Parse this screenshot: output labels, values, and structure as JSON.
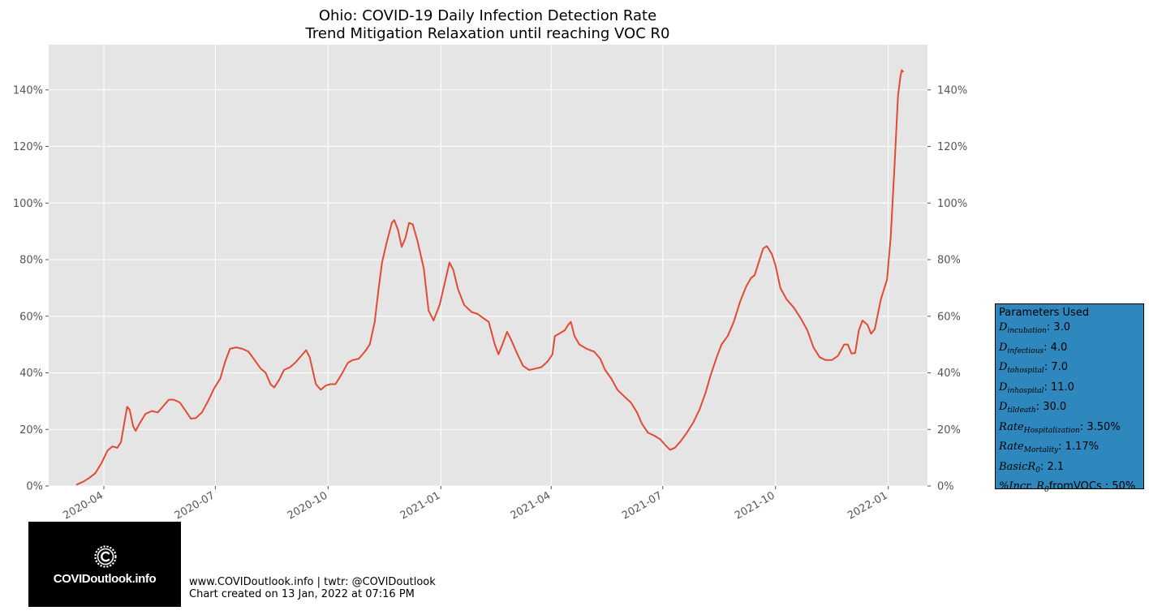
{
  "chart_data": {
    "type": "line",
    "title": [
      "Ohio: COVID-19 Daily Infection Detection Rate",
      "Trend Mitigation Relaxation until reaching VOC R0"
    ],
    "xlabel": "",
    "ylabel": "",
    "xlim": [
      "2020-02-16",
      "2022-02-02"
    ],
    "ylim": [
      0,
      1.56
    ],
    "x_ticks": [
      "2020-04",
      "2020-07",
      "2020-10",
      "2021-01",
      "2021-04",
      "2021-07",
      "2021-10",
      "2022-01"
    ],
    "y_ticks": [
      "0%",
      "20%",
      "40%",
      "60%",
      "80%",
      "100%",
      "120%",
      "140%"
    ],
    "y_tick_values": [
      0,
      0.2,
      0.4,
      0.6,
      0.8,
      1.0,
      1.2,
      1.4
    ],
    "secondary_y_axis": true,
    "grid": true,
    "series": [
      {
        "color": "#e24a33",
        "points": [
          [
            "2020-03-10",
            0.005
          ],
          [
            "2020-03-15",
            0.015
          ],
          [
            "2020-03-20",
            0.028
          ],
          [
            "2020-03-25",
            0.045
          ],
          [
            "2020-03-30",
            0.08
          ],
          [
            "2020-04-04",
            0.125
          ],
          [
            "2020-04-08",
            0.14
          ],
          [
            "2020-04-12",
            0.135
          ],
          [
            "2020-04-15",
            0.155
          ],
          [
            "2020-04-18",
            0.23
          ],
          [
            "2020-04-20",
            0.28
          ],
          [
            "2020-04-22",
            0.27
          ],
          [
            "2020-04-25",
            0.21
          ],
          [
            "2020-04-27",
            0.195
          ],
          [
            "2020-04-30",
            0.22
          ],
          [
            "2020-05-05",
            0.255
          ],
          [
            "2020-05-10",
            0.265
          ],
          [
            "2020-05-15",
            0.26
          ],
          [
            "2020-05-20",
            0.285
          ],
          [
            "2020-05-24",
            0.305
          ],
          [
            "2020-05-28",
            0.305
          ],
          [
            "2020-06-02",
            0.295
          ],
          [
            "2020-06-06",
            0.27
          ],
          [
            "2020-06-11",
            0.238
          ],
          [
            "2020-06-15",
            0.24
          ],
          [
            "2020-06-20",
            0.26
          ],
          [
            "2020-06-25",
            0.3
          ],
          [
            "2020-06-30",
            0.345
          ],
          [
            "2020-07-05",
            0.38
          ],
          [
            "2020-07-09",
            0.44
          ],
          [
            "2020-07-13",
            0.485
          ],
          [
            "2020-07-18",
            0.49
          ],
          [
            "2020-07-23",
            0.485
          ],
          [
            "2020-07-28",
            0.475
          ],
          [
            "2020-08-02",
            0.445
          ],
          [
            "2020-08-07",
            0.415
          ],
          [
            "2020-08-11",
            0.4
          ],
          [
            "2020-08-15",
            0.36
          ],
          [
            "2020-08-18",
            0.348
          ],
          [
            "2020-08-22",
            0.375
          ],
          [
            "2020-08-26",
            0.41
          ],
          [
            "2020-08-31",
            0.42
          ],
          [
            "2020-09-04",
            0.435
          ],
          [
            "2020-09-09",
            0.46
          ],
          [
            "2020-09-13",
            0.48
          ],
          [
            "2020-09-16",
            0.455
          ],
          [
            "2020-09-21",
            0.36
          ],
          [
            "2020-09-25",
            0.34
          ],
          [
            "2020-09-29",
            0.355
          ],
          [
            "2020-10-03",
            0.36
          ],
          [
            "2020-10-07",
            0.36
          ],
          [
            "2020-10-12",
            0.395
          ],
          [
            "2020-10-17",
            0.435
          ],
          [
            "2020-10-21",
            0.445
          ],
          [
            "2020-10-26",
            0.45
          ],
          [
            "2020-10-31",
            0.475
          ],
          [
            "2020-11-04",
            0.5
          ],
          [
            "2020-11-08",
            0.58
          ],
          [
            "2020-11-11",
            0.69
          ],
          [
            "2020-11-14",
            0.79
          ],
          [
            "2020-11-18",
            0.865
          ],
          [
            "2020-11-22",
            0.93
          ],
          [
            "2020-11-24",
            0.94
          ],
          [
            "2020-11-27",
            0.905
          ],
          [
            "2020-11-30",
            0.845
          ],
          [
            "2020-12-03",
            0.875
          ],
          [
            "2020-12-06",
            0.93
          ],
          [
            "2020-12-09",
            0.925
          ],
          [
            "2020-12-13",
            0.865
          ],
          [
            "2020-12-18",
            0.77
          ],
          [
            "2020-12-22",
            0.62
          ],
          [
            "2020-12-26",
            0.585
          ],
          [
            "2020-12-31",
            0.64
          ],
          [
            "2021-01-04",
            0.715
          ],
          [
            "2021-01-08",
            0.79
          ],
          [
            "2021-01-11",
            0.765
          ],
          [
            "2021-01-15",
            0.695
          ],
          [
            "2021-01-20",
            0.64
          ],
          [
            "2021-01-26",
            0.615
          ],
          [
            "2021-01-31",
            0.608
          ],
          [
            "2021-02-04",
            0.595
          ],
          [
            "2021-02-09",
            0.58
          ],
          [
            "2021-02-14",
            0.5
          ],
          [
            "2021-02-17",
            0.465
          ],
          [
            "2021-02-21",
            0.51
          ],
          [
            "2021-02-24",
            0.545
          ],
          [
            "2021-02-27",
            0.52
          ],
          [
            "2021-03-04",
            0.47
          ],
          [
            "2021-03-09",
            0.425
          ],
          [
            "2021-03-14",
            0.41
          ],
          [
            "2021-03-19",
            0.415
          ],
          [
            "2021-03-24",
            0.42
          ],
          [
            "2021-03-29",
            0.44
          ],
          [
            "2021-04-02",
            0.465
          ],
          [
            "2021-04-04",
            0.53
          ],
          [
            "2021-04-08",
            0.54
          ],
          [
            "2021-04-12",
            0.55
          ],
          [
            "2021-04-15",
            0.57
          ],
          [
            "2021-04-17",
            0.58
          ],
          [
            "2021-04-20",
            0.53
          ],
          [
            "2021-04-24",
            0.5
          ],
          [
            "2021-04-30",
            0.485
          ],
          [
            "2021-05-06",
            0.475
          ],
          [
            "2021-05-11",
            0.45
          ],
          [
            "2021-05-15",
            0.41
          ],
          [
            "2021-05-20",
            0.38
          ],
          [
            "2021-05-25",
            0.34
          ],
          [
            "2021-05-31",
            0.315
          ],
          [
            "2021-06-05",
            0.295
          ],
          [
            "2021-06-10",
            0.26
          ],
          [
            "2021-06-14",
            0.22
          ],
          [
            "2021-06-19",
            0.188
          ],
          [
            "2021-06-24",
            0.178
          ],
          [
            "2021-06-29",
            0.165
          ],
          [
            "2021-07-03",
            0.145
          ],
          [
            "2021-07-07",
            0.128
          ],
          [
            "2021-07-11",
            0.135
          ],
          [
            "2021-07-16",
            0.16
          ],
          [
            "2021-07-21",
            0.19
          ],
          [
            "2021-07-26",
            0.225
          ],
          [
            "2021-07-31",
            0.27
          ],
          [
            "2021-08-05",
            0.33
          ],
          [
            "2021-08-09",
            0.39
          ],
          [
            "2021-08-14",
            0.455
          ],
          [
            "2021-08-18",
            0.5
          ],
          [
            "2021-08-23",
            0.53
          ],
          [
            "2021-08-28",
            0.58
          ],
          [
            "2021-09-02",
            0.65
          ],
          [
            "2021-09-07",
            0.705
          ],
          [
            "2021-09-11",
            0.735
          ],
          [
            "2021-09-14",
            0.745
          ],
          [
            "2021-09-18",
            0.8
          ],
          [
            "2021-09-21",
            0.84
          ],
          [
            "2021-09-24",
            0.848
          ],
          [
            "2021-09-28",
            0.82
          ],
          [
            "2021-10-01",
            0.78
          ],
          [
            "2021-10-05",
            0.7
          ],
          [
            "2021-10-10",
            0.66
          ],
          [
            "2021-10-16",
            0.63
          ],
          [
            "2021-10-22",
            0.59
          ],
          [
            "2021-10-27",
            0.55
          ],
          [
            "2021-11-01",
            0.49
          ],
          [
            "2021-11-06",
            0.455
          ],
          [
            "2021-11-11",
            0.445
          ],
          [
            "2021-11-16",
            0.445
          ],
          [
            "2021-11-21",
            0.46
          ],
          [
            "2021-11-26",
            0.5
          ],
          [
            "2021-11-29",
            0.5
          ],
          [
            "2021-12-02",
            0.468
          ],
          [
            "2021-12-05",
            0.47
          ],
          [
            "2021-12-08",
            0.55
          ],
          [
            "2021-12-11",
            0.585
          ],
          [
            "2021-12-15",
            0.57
          ],
          [
            "2021-12-18",
            0.538
          ],
          [
            "2021-12-21",
            0.555
          ],
          [
            "2021-12-26",
            0.66
          ],
          [
            "2021-12-31",
            0.73
          ],
          [
            "2022-01-03",
            0.88
          ],
          [
            "2022-01-06",
            1.12
          ],
          [
            "2022-01-09",
            1.38
          ],
          [
            "2022-01-11",
            1.45
          ],
          [
            "2022-01-12",
            1.47
          ],
          [
            "2022-01-13",
            1.465
          ]
        ]
      }
    ]
  },
  "parameters_box": {
    "title": "Parameters Used",
    "rows": [
      {
        "sym": "D",
        "sub": "incubation",
        "value": ": 3.0"
      },
      {
        "sym": "D",
        "sub": "infectious",
        "value": ": 4.0"
      },
      {
        "sym": "D",
        "sub": "tohospital",
        "value": ": 7.0"
      },
      {
        "sym": "D",
        "sub": "inhospital",
        "value": ": 11.0"
      },
      {
        "sym": "D",
        "sub": "tildeath",
        "value": ": 30.0"
      },
      {
        "sym": "Rate",
        "sub": "Hospitalization",
        "value": ": 3.50%"
      },
      {
        "sym": "Rate",
        "sub": "Mortality",
        "value": ": 1.17%"
      },
      {
        "sym": "BasicR",
        "sub": "0",
        "value": ": 2.1"
      },
      {
        "sym": "%Incr. R",
        "sub": "0",
        "value": "fromVOCs : 50%"
      }
    ]
  },
  "logo": {
    "text": "COVIDoutlook.info"
  },
  "footer": {
    "line1": "www.COVIDoutlook.info | twtr: @COVIDoutlook",
    "line2": "Chart created on 13 Jan, 2022 at 07:16 PM"
  },
  "colors": {
    "line": "#e24a33",
    "plot_bg": "#e5e5e5",
    "grid": "#ffffff",
    "params_bg": "#2e87bd",
    "tick_text": "#555555"
  }
}
